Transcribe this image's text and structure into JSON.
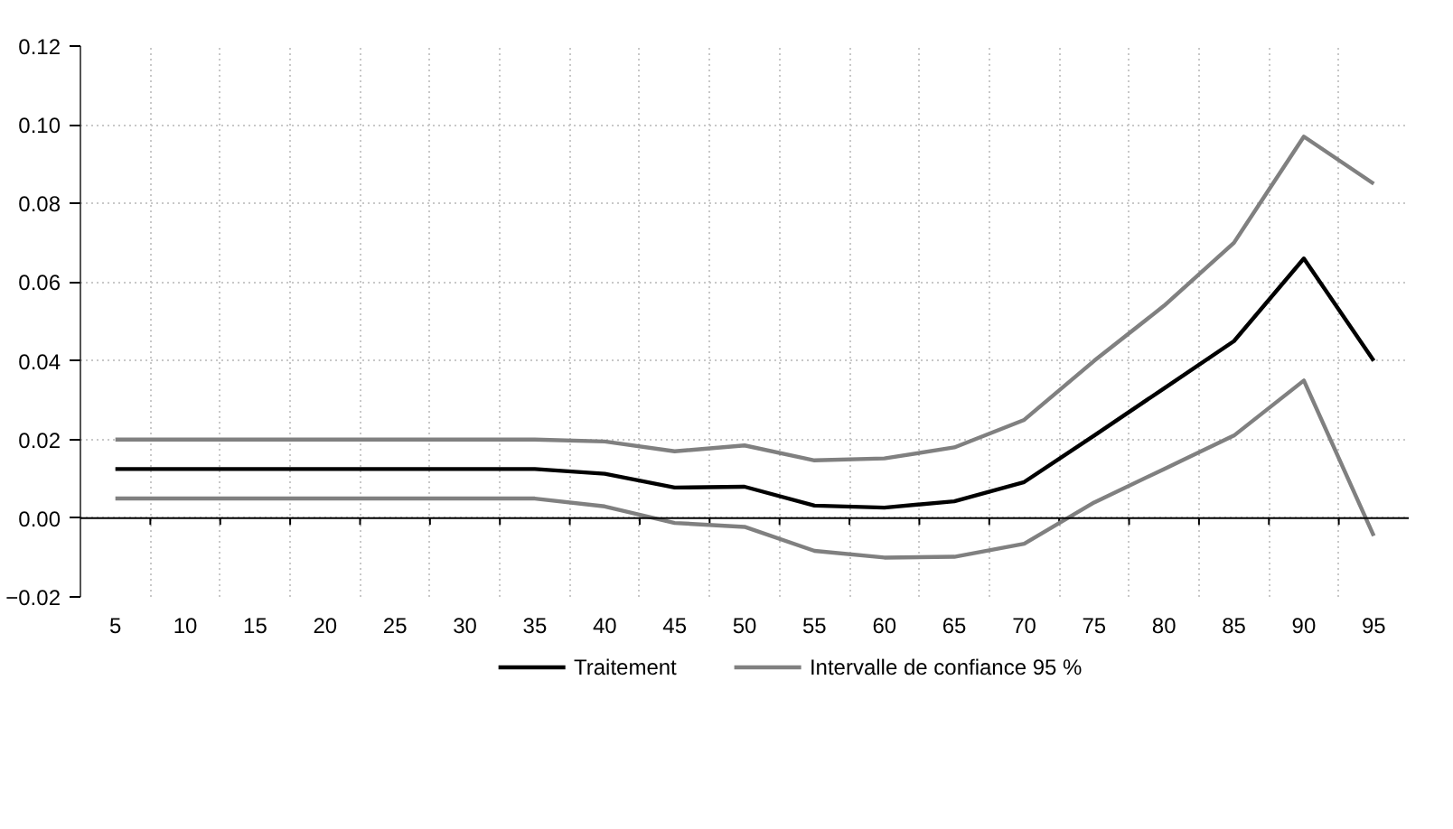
{
  "chart_data": {
    "type": "line",
    "categories": [
      "5",
      "10",
      "15",
      "20",
      "25",
      "30",
      "35",
      "40",
      "45",
      "50",
      "55",
      "60",
      "65",
      "70",
      "75",
      "80",
      "85",
      "90",
      "95"
    ],
    "series": [
      {
        "name": "Traitement",
        "color": "#000000",
        "values": [
          0.0125,
          0.0125,
          0.0125,
          0.0125,
          0.0125,
          0.0125,
          0.0125,
          0.0113,
          0.0078,
          0.008,
          0.0032,
          0.0027,
          0.0043,
          0.0092,
          0.021,
          0.033,
          0.045,
          0.066,
          0.04
        ]
      },
      {
        "name": "Intervalle de confiance 95 %",
        "color": "#808080",
        "values": [
          0.02,
          0.02,
          0.02,
          0.02,
          0.02,
          0.02,
          0.02,
          0.0195,
          0.017,
          0.0185,
          0.0147,
          0.0152,
          0.018,
          0.025,
          0.04,
          0.054,
          0.07,
          0.097,
          0.085
        ]
      },
      {
        "color": "#808080",
        "values": [
          0.005,
          0.005,
          0.005,
          0.005,
          0.005,
          0.005,
          0.005,
          0.003,
          -0.0012,
          -0.0022,
          -0.0083,
          -0.01,
          -0.0098,
          -0.0065,
          0.004,
          0.0125,
          0.021,
          0.035,
          -0.0045
        ]
      }
    ],
    "ylim": [
      -0.02,
      0.12
    ],
    "yticks": [
      {
        "value": -0.02,
        "label": "−0.02"
      },
      {
        "value": 0,
        "label": "0.00"
      },
      {
        "value": 0.02,
        "label": "0.02"
      },
      {
        "value": 0.04,
        "label": "0.04"
      },
      {
        "value": 0.06,
        "label": "0.06"
      },
      {
        "value": 0.08,
        "label": "0.08"
      },
      {
        "value": 0.1,
        "label": "0.10"
      },
      {
        "value": 0.12,
        "label": "0.12"
      }
    ],
    "ref_lines": [
      {
        "axis": "y",
        "value": 0,
        "color": "#000000"
      }
    ],
    "grid": true,
    "legend": "bottom",
    "marker": "none",
    "line_style": "solid"
  }
}
